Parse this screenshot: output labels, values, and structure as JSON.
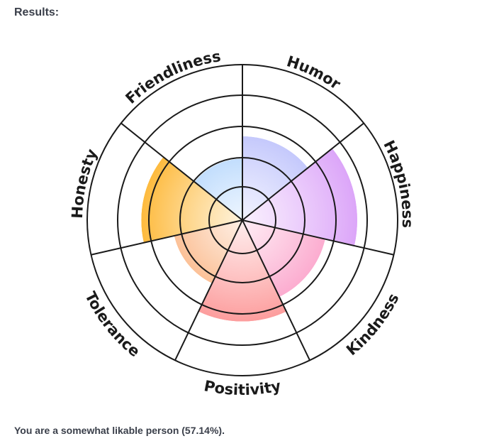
{
  "title": "Results:",
  "result_text": "You are a somewhat likable person (57.14%).",
  "chart_data": {
    "type": "polar-area",
    "categories": [
      "Humor",
      "Happiness",
      "Kindness",
      "Positivity",
      "Tolerance",
      "Honesty",
      "Friendliness"
    ],
    "values": [
      0.67,
      0.92,
      0.68,
      0.81,
      0.56,
      0.81,
      0.49
    ],
    "value_scale": "fraction of outermost level ring",
    "levels": 4,
    "colors": [
      "#aab0fb",
      "#d99ef8",
      "#fa88bb",
      "#fc8787",
      "#f99650",
      "#fdab12",
      "#8cc0fb"
    ],
    "grid": true
  }
}
